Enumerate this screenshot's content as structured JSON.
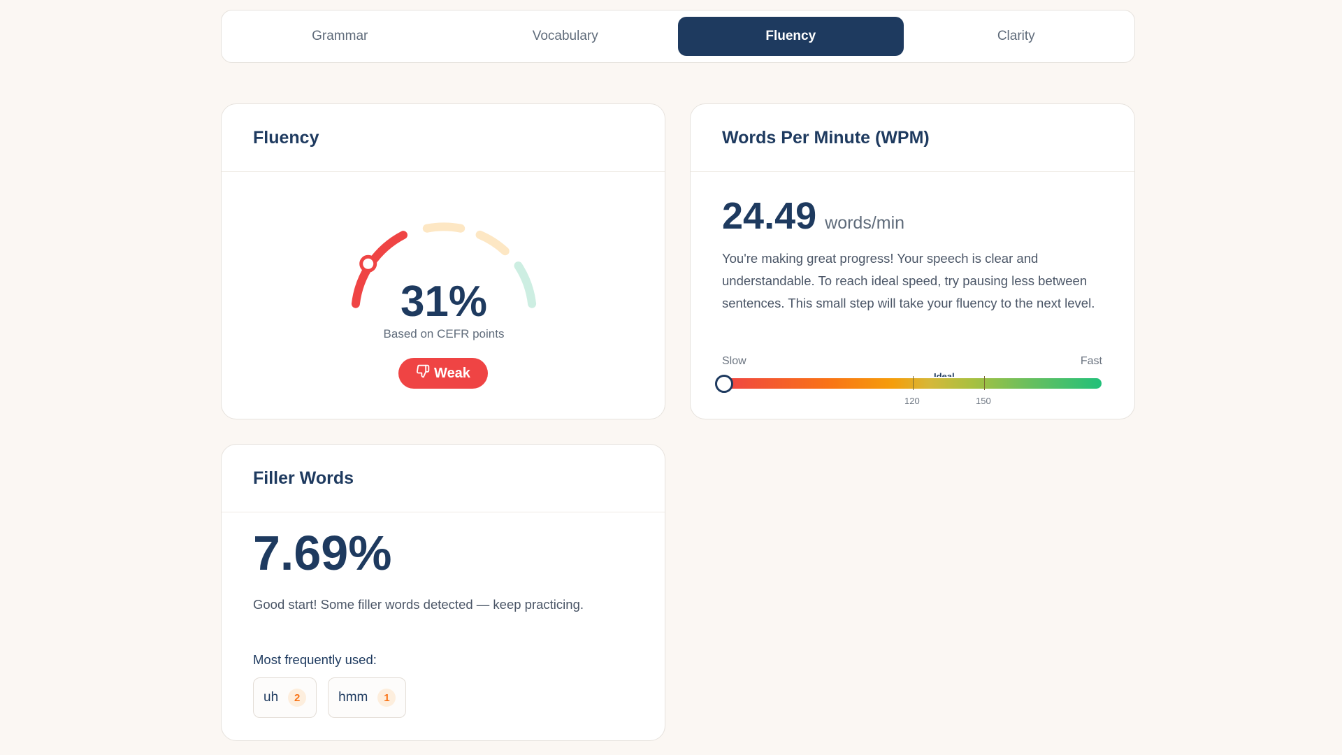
{
  "tabs": [
    {
      "label": "Grammar",
      "active": false
    },
    {
      "label": "Vocabulary",
      "active": false
    },
    {
      "label": "Fluency",
      "active": true
    },
    {
      "label": "Clarity",
      "active": false
    }
  ],
  "fluency": {
    "title": "Fluency",
    "value_label": "31%",
    "value": 0.31,
    "subtitle": "Based on CEFR points",
    "badge": {
      "label": "Weak",
      "icon": "thumbs-down-icon",
      "color": "#ef4444"
    },
    "segment_colors": [
      "#ef4444",
      "#fde7c4",
      "#fde7c4",
      "#cdeee2"
    ]
  },
  "wpm": {
    "title": "Words Per Minute (WPM)",
    "value": "24.49",
    "unit": "words/min",
    "description": "You're making great progress! Your speech is clear and understandable. To reach ideal speed, try pausing less between sentences. This small step will take your fluency to the next level.",
    "scale": {
      "slow_label": "Slow",
      "fast_label": "Fast",
      "ideal_label": "Ideal",
      "tick_low": "120",
      "tick_high": "150",
      "position": 0
    }
  },
  "filler": {
    "title": "Filler Words",
    "value": "7.69%",
    "description": "Good start! Some filler words detected — keep practicing.",
    "most_used_label": "Most frequently used:",
    "words": [
      {
        "word": "uh",
        "count": "2"
      },
      {
        "word": "hmm",
        "count": "1"
      }
    ]
  },
  "colors": {
    "primary": "#1e3a5f",
    "weak": "#ef4444",
    "background": "#fbf7f3",
    "accent_orange": "#f97316"
  }
}
